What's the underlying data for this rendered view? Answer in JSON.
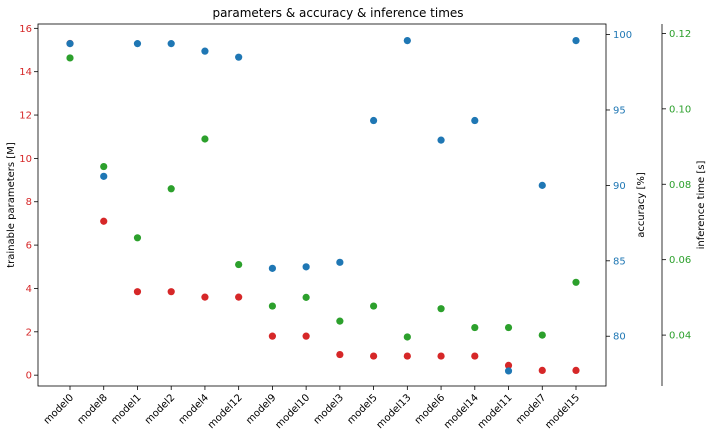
{
  "chart_data": {
    "type": "scatter",
    "title": "parameters & accuracy & inference times",
    "categories": [
      "model0",
      "model8",
      "model1",
      "model2",
      "model4",
      "model12",
      "model9",
      "model10",
      "model3",
      "model5",
      "model13",
      "model6",
      "model14",
      "model11",
      "model7",
      "model15"
    ],
    "axes": {
      "left": {
        "label": "trainable parameters [M]",
        "color": "#d62728",
        "ylim": [
          -0.5,
          16.2
        ],
        "ticks": [
          0,
          2,
          4,
          6,
          8,
          10,
          12,
          14,
          16
        ],
        "tick_labels": [
          "0",
          "2",
          "4",
          "6",
          "8",
          "10",
          "12",
          "14",
          "16"
        ]
      },
      "right1": {
        "label": "accuracy [%]",
        "color": "#1f77b4",
        "ylim": [
          76.7,
          100.7
        ],
        "ticks": [
          80,
          85,
          90,
          95,
          100
        ],
        "tick_labels": [
          "80",
          "85",
          "90",
          "95",
          "100"
        ]
      },
      "right2": {
        "label": "inference time [s]",
        "color": "#2ca02c",
        "ylim": [
          0.0265,
          0.1225
        ],
        "ticks": [
          0.04,
          0.06,
          0.08,
          0.1,
          0.12
        ],
        "tick_labels": [
          "0.04",
          "0.06",
          "0.08",
          "0.10",
          "0.12"
        ]
      }
    },
    "series": [
      {
        "axis": "left",
        "color": "#d62728",
        "values": [
          15.3,
          7.1,
          3.85,
          3.85,
          3.6,
          3.6,
          1.8,
          1.8,
          0.95,
          0.88,
          0.88,
          0.88,
          0.88,
          0.45,
          0.22,
          0.22
        ]
      },
      {
        "axis": "right1",
        "color": "#1f77b4",
        "values": [
          99.4,
          90.6,
          99.4,
          99.4,
          98.9,
          98.5,
          84.5,
          84.6,
          84.9,
          94.3,
          99.6,
          93.0,
          94.3,
          77.7,
          90.0,
          99.6
        ]
      },
      {
        "axis": "right2",
        "color": "#2ca02c",
        "values": [
          0.1135,
          0.0847,
          0.0658,
          0.0788,
          0.092,
          0.0587,
          0.0477,
          0.05,
          0.0437,
          0.0477,
          0.0395,
          0.047,
          0.042,
          0.042,
          0.04,
          0.054
        ]
      }
    ]
  }
}
